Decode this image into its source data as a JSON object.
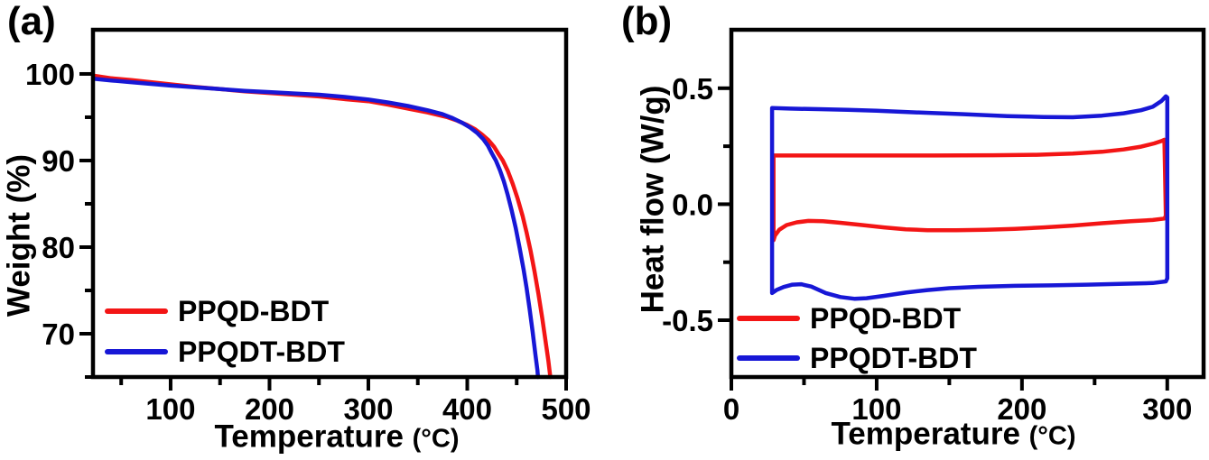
{
  "figure": {
    "background": "#ffffff",
    "axis_color": "#000000",
    "series_red": "#f31515",
    "series_blue": "#1717d6"
  },
  "chart_data": [
    {
      "type": "line",
      "panel_label": "(a)",
      "xlabel": "Temperature",
      "xlabel_unit": "(°C)",
      "ylabel": "Weight (%)",
      "xlim": [
        21.5,
        500
      ],
      "ylim": [
        65,
        105.1
      ],
      "x_major_ticks": [
        100,
        200,
        300,
        400,
        500
      ],
      "x_tick_labels": [
        "100",
        "200",
        "300",
        "400",
        "500"
      ],
      "x_minor_ticks": [
        50,
        150,
        250,
        350,
        450
      ],
      "y_major_ticks": [
        70,
        80,
        90,
        100
      ],
      "y_tick_labels": [
        "70",
        "80",
        "90",
        "100"
      ],
      "y_minor_ticks": [
        65,
        75,
        85,
        95
      ],
      "grid": false,
      "legend": {
        "position": "lower-left",
        "entries": [
          {
            "label": "PPQD-BDT",
            "color": "#f31515"
          },
          {
            "label": "PPQDT-BDT",
            "color": "#1717d6"
          }
        ]
      },
      "series": [
        {
          "name": "PPQD-BDT",
          "color": "#f31515",
          "closed": false,
          "points": [
            [
              22,
              99.8
            ],
            [
              40,
              99.5
            ],
            [
              60,
              99.3
            ],
            [
              80,
              99.05
            ],
            [
              100,
              98.8
            ],
            [
              125,
              98.5
            ],
            [
              150,
              98.25
            ],
            [
              175,
              98.0
            ],
            [
              200,
              97.8
            ],
            [
              225,
              97.6
            ],
            [
              250,
              97.4
            ],
            [
              275,
              97.1
            ],
            [
              300,
              96.85
            ],
            [
              320,
              96.45
            ],
            [
              340,
              96.0
            ],
            [
              360,
              95.55
            ],
            [
              380,
              95.0
            ],
            [
              390,
              94.6
            ],
            [
              400,
              94.1
            ],
            [
              408,
              93.6
            ],
            [
              415,
              93.0
            ],
            [
              421,
              92.4
            ],
            [
              427,
              91.6
            ],
            [
              432,
              90.7
            ],
            [
              436,
              90.0
            ],
            [
              441,
              88.8
            ],
            [
              446,
              87.3
            ],
            [
              451,
              85.6
            ],
            [
              456,
              83.6
            ],
            [
              460,
              81.7
            ],
            [
              464,
              79.6
            ],
            [
              468,
              77.2
            ],
            [
              472,
              74.6
            ],
            [
              476,
              71.7
            ],
            [
              479,
              69.3
            ],
            [
              482,
              66.9
            ],
            [
              484,
              65.0
            ]
          ]
        },
        {
          "name": "PPQDT-BDT",
          "color": "#1717d6",
          "closed": false,
          "points": [
            [
              22,
              99.45
            ],
            [
              40,
              99.25
            ],
            [
              60,
              99.05
            ],
            [
              80,
              98.85
            ],
            [
              100,
              98.65
            ],
            [
              125,
              98.45
            ],
            [
              150,
              98.25
            ],
            [
              175,
              98.05
            ],
            [
              200,
              97.9
            ],
            [
              225,
              97.75
            ],
            [
              250,
              97.6
            ],
            [
              275,
              97.35
            ],
            [
              300,
              97.05
            ],
            [
              320,
              96.7
            ],
            [
              340,
              96.3
            ],
            [
              360,
              95.8
            ],
            [
              375,
              95.35
            ],
            [
              385,
              94.9
            ],
            [
              395,
              94.35
            ],
            [
              403,
              93.8
            ],
            [
              410,
              93.2
            ],
            [
              416,
              92.5
            ],
            [
              421,
              91.7
            ],
            [
              425,
              90.8
            ],
            [
              429,
              90.0
            ],
            [
              433,
              88.9
            ],
            [
              437,
              87.6
            ],
            [
              441,
              86.0
            ],
            [
              445,
              84.2
            ],
            [
              449,
              82.2
            ],
            [
              453,
              79.9
            ],
            [
              457,
              77.4
            ],
            [
              460,
              75.3
            ],
            [
              463,
              72.9
            ],
            [
              466,
              70.3
            ],
            [
              469,
              67.5
            ],
            [
              471,
              65.8
            ],
            [
              471.5,
              65.0
            ]
          ]
        }
      ]
    },
    {
      "type": "line",
      "panel_label": "(b)",
      "xlabel": "Temperature",
      "xlabel_unit": "(°C)",
      "ylabel": "Heat flow (W/g)",
      "xlim": [
        0,
        325
      ],
      "ylim": [
        -0.745,
        0.752
      ],
      "x_major_ticks": [
        0,
        100,
        200,
        300
      ],
      "x_tick_labels": [
        "0",
        "100",
        "200",
        "300"
      ],
      "x_minor_ticks": [
        50,
        150,
        250
      ],
      "y_major_ticks": [
        0.5,
        0.0,
        -0.5
      ],
      "y_tick_labels": [
        "0.5",
        "0.0",
        "-0.5"
      ],
      "y_minor_ticks": [
        0.25,
        -0.25
      ],
      "grid": false,
      "legend": {
        "position": "lower-left",
        "entries": [
          {
            "label": "PPQD-BDT",
            "color": "#f31515"
          },
          {
            "label": "PPQDT-BDT",
            "color": "#1717d6"
          }
        ]
      },
      "series": [
        {
          "name": "PPQD-BDT",
          "color": "#f31515",
          "closed": true,
          "points": [
            [
              29,
              0.21
            ],
            [
              60,
              0.21
            ],
            [
              100,
              0.21
            ],
            [
              140,
              0.21
            ],
            [
              180,
              0.211
            ],
            [
              210,
              0.213
            ],
            [
              235,
              0.218
            ],
            [
              255,
              0.226
            ],
            [
              270,
              0.236
            ],
            [
              282,
              0.248
            ],
            [
              291,
              0.262
            ],
            [
              296,
              0.272
            ],
            [
              298,
              0.278
            ],
            [
              299,
              -0.05
            ],
            [
              298,
              -0.062
            ],
            [
              290,
              -0.068
            ],
            [
              275,
              -0.073
            ],
            [
              255,
              -0.082
            ],
            [
              235,
              -0.092
            ],
            [
              215,
              -0.1
            ],
            [
              195,
              -0.106
            ],
            [
              175,
              -0.11
            ],
            [
              155,
              -0.112
            ],
            [
              135,
              -0.112
            ],
            [
              120,
              -0.108
            ],
            [
              105,
              -0.1
            ],
            [
              90,
              -0.09
            ],
            [
              75,
              -0.08
            ],
            [
              63,
              -0.073
            ],
            [
              53,
              -0.072
            ],
            [
              45,
              -0.078
            ],
            [
              38,
              -0.09
            ],
            [
              33,
              -0.11
            ],
            [
              30,
              -0.135
            ],
            [
              29,
              -0.155
            ]
          ]
        },
        {
          "name": "PPQDT-BDT",
          "color": "#1717d6",
          "closed": true,
          "points": [
            [
              28,
              0.415
            ],
            [
              40,
              0.412
            ],
            [
              60,
              0.41
            ],
            [
              80,
              0.407
            ],
            [
              100,
              0.403
            ],
            [
              130,
              0.395
            ],
            [
              160,
              0.388
            ],
            [
              190,
              0.38
            ],
            [
              215,
              0.376
            ],
            [
              235,
              0.375
            ],
            [
              255,
              0.382
            ],
            [
              270,
              0.392
            ],
            [
              282,
              0.405
            ],
            [
              290,
              0.42
            ],
            [
              296,
              0.445
            ],
            [
              299,
              0.465
            ],
            [
              300,
              0.46
            ],
            [
              300,
              -0.32
            ],
            [
              299,
              -0.333
            ],
            [
              290,
              -0.34
            ],
            [
              270,
              -0.343
            ],
            [
              245,
              -0.347
            ],
            [
              220,
              -0.35
            ],
            [
              195,
              -0.352
            ],
            [
              170,
              -0.356
            ],
            [
              150,
              -0.362
            ],
            [
              135,
              -0.37
            ],
            [
              120,
              -0.381
            ],
            [
              105,
              -0.395
            ],
            [
              93,
              -0.405
            ],
            [
              85,
              -0.408
            ],
            [
              75,
              -0.4
            ],
            [
              65,
              -0.383
            ],
            [
              55,
              -0.355
            ],
            [
              48,
              -0.345
            ],
            [
              42,
              -0.347
            ],
            [
              36,
              -0.357
            ],
            [
              31,
              -0.37
            ],
            [
              28,
              -0.383
            ]
          ]
        }
      ]
    }
  ]
}
